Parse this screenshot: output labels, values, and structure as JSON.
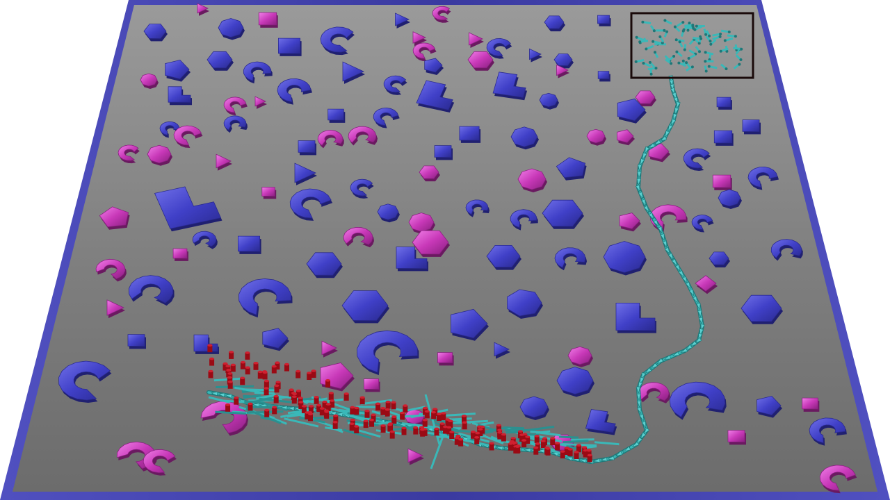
{
  "scene": {
    "description_visible_text": "",
    "colors": {
      "background": "#ffffff",
      "floor_top": "#9a9a9a",
      "floor_bottom": "#6a6a6a",
      "border": "#3a3aa0",
      "border_highlight": "#7a7ad8",
      "obstacle_blue": "#3a3ac0",
      "obstacle_blue_light": "#7070e8",
      "obstacle_magenta": "#c838b8",
      "obstacle_magenta_light": "#f070e0",
      "path_teal": "#3ab8b8",
      "path_teal_dark": "#1e7878",
      "agent_red": "#9a0a14",
      "agent_red_light": "#d02030",
      "goal_box": "#1a0a0a"
    },
    "elements": {
      "floor": "ground-plane",
      "obstacles": "scattered-obstacles",
      "path": "motion-path-trail",
      "agents": "agent-markers",
      "goal": "goal-region-box"
    }
  }
}
